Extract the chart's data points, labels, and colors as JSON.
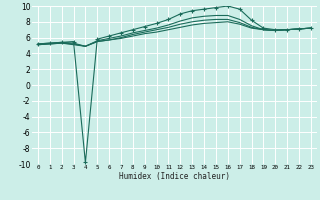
{
  "background_color": "#cceee8",
  "grid_color": "#ffffff",
  "line_color": "#1a6b5a",
  "xlabel": "Humidex (Indice chaleur)",
  "xlim": [
    -0.5,
    23.5
  ],
  "ylim": [
    -10,
    10
  ],
  "xtick_vals": [
    0,
    1,
    2,
    3,
    4,
    5,
    6,
    7,
    8,
    9,
    10,
    11,
    12,
    13,
    14,
    15,
    16,
    17,
    18,
    19,
    20,
    21,
    22,
    23
  ],
  "xtick_labels": [
    "0",
    "1",
    "2",
    "3",
    "4",
    "5",
    "6",
    "7",
    "8",
    "9",
    "10",
    "11",
    "12",
    "13",
    "14",
    "15",
    "16",
    "17",
    "18",
    "19",
    "20",
    "21",
    "22",
    "23"
  ],
  "ytick_vals": [
    -10,
    -8,
    -6,
    -4,
    -2,
    0,
    2,
    4,
    6,
    8,
    10
  ],
  "ytick_labels": [
    "-10",
    "-8",
    "-6",
    "-4",
    "-2",
    "0",
    "2",
    "4",
    "6",
    "8",
    "10"
  ],
  "series_top": {
    "x": [
      0,
      1,
      2,
      3,
      4,
      5,
      6,
      7,
      8,
      9,
      10,
      11,
      12,
      13,
      14,
      15,
      16,
      17,
      18,
      19,
      20,
      21,
      22,
      23
    ],
    "y": [
      5.2,
      5.3,
      5.4,
      5.5,
      -9.8,
      5.8,
      6.2,
      6.6,
      7.0,
      7.4,
      7.8,
      8.3,
      9.0,
      9.4,
      9.6,
      9.8,
      10.0,
      9.6,
      8.2,
      7.2,
      7.0,
      7.0,
      7.1,
      7.2
    ]
  },
  "series_mid1": {
    "x": [
      0,
      1,
      2,
      3,
      4,
      5,
      6,
      7,
      8,
      9,
      10,
      11,
      12,
      13,
      14,
      15,
      16,
      17,
      18,
      19,
      20,
      21,
      22,
      23
    ],
    "y": [
      5.2,
      5.3,
      5.4,
      5.3,
      4.9,
      5.6,
      5.9,
      6.2,
      6.6,
      6.9,
      7.2,
      7.6,
      8.1,
      8.5,
      8.7,
      8.8,
      8.8,
      8.3,
      7.5,
      7.0,
      6.9,
      7.0,
      7.1,
      7.2
    ]
  },
  "series_mid2": {
    "x": [
      0,
      1,
      2,
      3,
      4,
      5,
      6,
      7,
      8,
      9,
      10,
      11,
      12,
      13,
      14,
      15,
      16,
      17,
      18,
      19,
      20,
      21,
      22,
      23
    ],
    "y": [
      5.1,
      5.2,
      5.3,
      5.2,
      4.9,
      5.5,
      5.7,
      6.0,
      6.4,
      6.7,
      7.0,
      7.3,
      7.7,
      8.0,
      8.2,
      8.3,
      8.3,
      7.9,
      7.3,
      7.0,
      6.9,
      7.0,
      7.1,
      7.2
    ]
  },
  "series_bot": {
    "x": [
      0,
      1,
      2,
      3,
      4,
      5,
      6,
      7,
      8,
      9,
      10,
      11,
      12,
      13,
      14,
      15,
      16,
      17,
      18,
      19,
      20,
      21,
      22,
      23
    ],
    "y": [
      5.1,
      5.2,
      5.3,
      5.1,
      4.9,
      5.5,
      5.7,
      5.9,
      6.2,
      6.5,
      6.7,
      7.0,
      7.3,
      7.6,
      7.8,
      7.9,
      8.0,
      7.7,
      7.2,
      7.0,
      6.9,
      7.0,
      7.1,
      7.2
    ]
  }
}
